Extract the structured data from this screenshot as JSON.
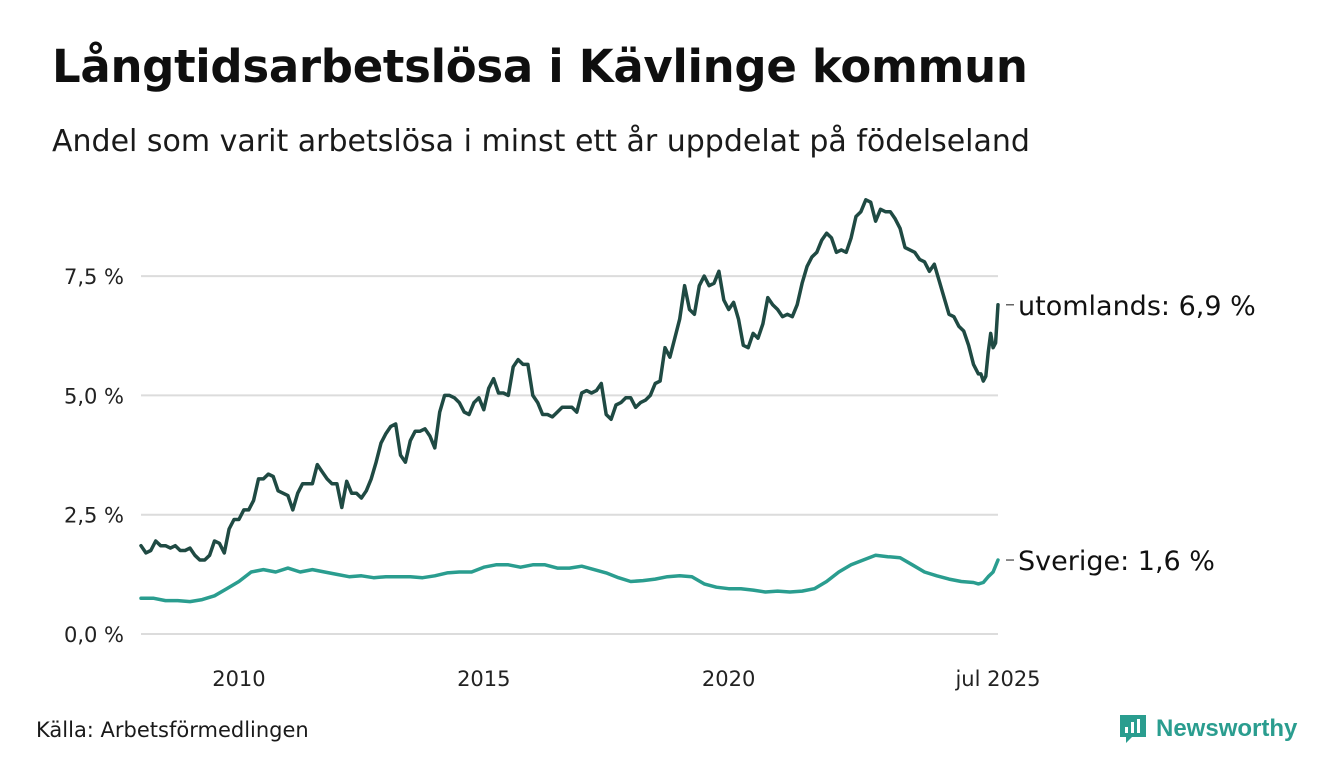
{
  "title": "Långtidsarbetslösa i Kävlinge kommun",
  "subtitle": "Andel som varit arbetslösa i minst ett år uppdelat på födelseland",
  "source": "Källa: Arbetsförmedlingen",
  "brand": {
    "name": "Newsworthy",
    "icon": "newsworthy-logo-icon",
    "color": "#2a9d8f"
  },
  "chart_data": {
    "type": "line",
    "x_unit": "decimal-year",
    "x_range": [
      2008.0,
      2025.5
    ],
    "ylim": [
      0,
      9.2
    ],
    "y_ticks": [
      {
        "value": 0,
        "label": "0,0 %"
      },
      {
        "value": 2.5,
        "label": "2,5 %"
      },
      {
        "value": 5,
        "label": "5,0 %"
      },
      {
        "value": 7.5,
        "label": "7,5 %"
      }
    ],
    "x_ticks": [
      {
        "value": 2010,
        "label": "2010"
      },
      {
        "value": 2015,
        "label": "2015"
      },
      {
        "value": 2020,
        "label": "2020"
      },
      {
        "value": 2025.5,
        "label": "jul 2025"
      }
    ],
    "grid": "horizontal",
    "series": [
      {
        "name": "utomlands",
        "end_label": "utomlands: 6,9 %",
        "color": "#1f4a43",
        "points": [
          [
            2008.0,
            1.85
          ],
          [
            2008.1,
            1.7
          ],
          [
            2008.2,
            1.75
          ],
          [
            2008.3,
            1.95
          ],
          [
            2008.4,
            1.85
          ],
          [
            2008.5,
            1.85
          ],
          [
            2008.6,
            1.8
          ],
          [
            2008.7,
            1.85
          ],
          [
            2008.8,
            1.75
          ],
          [
            2008.9,
            1.75
          ],
          [
            2009.0,
            1.8
          ],
          [
            2009.1,
            1.65
          ],
          [
            2009.2,
            1.55
          ],
          [
            2009.3,
            1.55
          ],
          [
            2009.4,
            1.65
          ],
          [
            2009.5,
            1.95
          ],
          [
            2009.6,
            1.9
          ],
          [
            2009.7,
            1.7
          ],
          [
            2009.8,
            2.2
          ],
          [
            2009.9,
            2.4
          ],
          [
            2010.0,
            2.4
          ],
          [
            2010.1,
            2.6
          ],
          [
            2010.2,
            2.6
          ],
          [
            2010.3,
            2.8
          ],
          [
            2010.4,
            3.25
          ],
          [
            2010.5,
            3.25
          ],
          [
            2010.6,
            3.35
          ],
          [
            2010.7,
            3.3
          ],
          [
            2010.8,
            3.0
          ],
          [
            2010.9,
            2.95
          ],
          [
            2011.0,
            2.9
          ],
          [
            2011.1,
            2.6
          ],
          [
            2011.2,
            2.95
          ],
          [
            2011.3,
            3.15
          ],
          [
            2011.4,
            3.15
          ],
          [
            2011.5,
            3.15
          ],
          [
            2011.6,
            3.55
          ],
          [
            2011.7,
            3.4
          ],
          [
            2011.8,
            3.25
          ],
          [
            2011.9,
            3.15
          ],
          [
            2012.0,
            3.15
          ],
          [
            2012.1,
            2.65
          ],
          [
            2012.2,
            3.2
          ],
          [
            2012.3,
            2.95
          ],
          [
            2012.4,
            2.95
          ],
          [
            2012.5,
            2.85
          ],
          [
            2012.6,
            3.0
          ],
          [
            2012.7,
            3.25
          ],
          [
            2012.8,
            3.6
          ],
          [
            2012.9,
            4.0
          ],
          [
            2013.0,
            4.2
          ],
          [
            2013.1,
            4.35
          ],
          [
            2013.2,
            4.4
          ],
          [
            2013.3,
            3.75
          ],
          [
            2013.4,
            3.6
          ],
          [
            2013.5,
            4.05
          ],
          [
            2013.6,
            4.25
          ],
          [
            2013.7,
            4.25
          ],
          [
            2013.8,
            4.3
          ],
          [
            2013.9,
            4.15
          ],
          [
            2014.0,
            3.9
          ],
          [
            2014.1,
            4.65
          ],
          [
            2014.2,
            5.0
          ],
          [
            2014.3,
            5.0
          ],
          [
            2014.4,
            4.95
          ],
          [
            2014.5,
            4.85
          ],
          [
            2014.6,
            4.65
          ],
          [
            2014.7,
            4.6
          ],
          [
            2014.8,
            4.85
          ],
          [
            2014.9,
            4.95
          ],
          [
            2015.0,
            4.7
          ],
          [
            2015.1,
            5.15
          ],
          [
            2015.2,
            5.35
          ],
          [
            2015.3,
            5.05
          ],
          [
            2015.4,
            5.05
          ],
          [
            2015.5,
            5.0
          ],
          [
            2015.6,
            5.6
          ],
          [
            2015.7,
            5.75
          ],
          [
            2015.8,
            5.65
          ],
          [
            2015.9,
            5.65
          ],
          [
            2016.0,
            5.0
          ],
          [
            2016.1,
            4.85
          ],
          [
            2016.2,
            4.6
          ],
          [
            2016.3,
            4.6
          ],
          [
            2016.4,
            4.55
          ],
          [
            2016.5,
            4.65
          ],
          [
            2016.6,
            4.75
          ],
          [
            2016.7,
            4.75
          ],
          [
            2016.8,
            4.75
          ],
          [
            2016.9,
            4.65
          ],
          [
            2017.0,
            5.05
          ],
          [
            2017.1,
            5.1
          ],
          [
            2017.2,
            5.05
          ],
          [
            2017.3,
            5.1
          ],
          [
            2017.4,
            5.25
          ],
          [
            2017.5,
            4.6
          ],
          [
            2017.6,
            4.5
          ],
          [
            2017.7,
            4.8
          ],
          [
            2017.8,
            4.85
          ],
          [
            2017.9,
            4.95
          ],
          [
            2018.0,
            4.95
          ],
          [
            2018.1,
            4.75
          ],
          [
            2018.2,
            4.85
          ],
          [
            2018.3,
            4.9
          ],
          [
            2018.4,
            5.0
          ],
          [
            2018.5,
            5.25
          ],
          [
            2018.6,
            5.3
          ],
          [
            2018.7,
            6.0
          ],
          [
            2018.8,
            5.8
          ],
          [
            2018.9,
            6.2
          ],
          [
            2019.0,
            6.6
          ],
          [
            2019.1,
            7.3
          ],
          [
            2019.2,
            6.8
          ],
          [
            2019.3,
            6.7
          ],
          [
            2019.4,
            7.3
          ],
          [
            2019.5,
            7.5
          ],
          [
            2019.6,
            7.3
          ],
          [
            2019.7,
            7.35
          ],
          [
            2019.8,
            7.6
          ],
          [
            2019.9,
            7.0
          ],
          [
            2020.0,
            6.8
          ],
          [
            2020.1,
            6.95
          ],
          [
            2020.2,
            6.6
          ],
          [
            2020.3,
            6.05
          ],
          [
            2020.4,
            6.0
          ],
          [
            2020.5,
            6.3
          ],
          [
            2020.6,
            6.2
          ],
          [
            2020.7,
            6.5
          ],
          [
            2020.8,
            7.05
          ],
          [
            2020.9,
            6.9
          ],
          [
            2021.0,
            6.8
          ],
          [
            2021.1,
            6.65
          ],
          [
            2021.2,
            6.7
          ],
          [
            2021.3,
            6.65
          ],
          [
            2021.4,
            6.9
          ],
          [
            2021.5,
            7.35
          ],
          [
            2021.6,
            7.7
          ],
          [
            2021.7,
            7.9
          ],
          [
            2021.8,
            8.0
          ],
          [
            2021.9,
            8.25
          ],
          [
            2022.0,
            8.4
          ],
          [
            2022.1,
            8.3
          ],
          [
            2022.2,
            8.0
          ],
          [
            2022.3,
            8.05
          ],
          [
            2022.4,
            8.0
          ],
          [
            2022.5,
            8.3
          ],
          [
            2022.6,
            8.75
          ],
          [
            2022.7,
            8.85
          ],
          [
            2022.8,
            9.1
          ],
          [
            2022.9,
            9.05
          ],
          [
            2023.0,
            8.65
          ],
          [
            2023.1,
            8.9
          ],
          [
            2023.2,
            8.85
          ],
          [
            2023.3,
            8.85
          ],
          [
            2023.4,
            8.7
          ],
          [
            2023.5,
            8.5
          ],
          [
            2023.6,
            8.1
          ],
          [
            2023.7,
            8.05
          ],
          [
            2023.8,
            8.0
          ],
          [
            2023.9,
            7.85
          ],
          [
            2024.0,
            7.8
          ],
          [
            2024.1,
            7.6
          ],
          [
            2024.2,
            7.75
          ],
          [
            2024.3,
            7.4
          ],
          [
            2024.4,
            7.05
          ],
          [
            2024.5,
            6.7
          ],
          [
            2024.6,
            6.65
          ],
          [
            2024.7,
            6.45
          ],
          [
            2024.8,
            6.35
          ],
          [
            2024.9,
            6.05
          ],
          [
            2025.0,
            5.65
          ],
          [
            2025.1,
            5.45
          ],
          [
            2025.15,
            5.45
          ],
          [
            2025.2,
            5.3
          ],
          [
            2025.25,
            5.4
          ],
          [
            2025.3,
            5.9
          ],
          [
            2025.35,
            6.3
          ],
          [
            2025.4,
            6.0
          ],
          [
            2025.45,
            6.1
          ],
          [
            2025.5,
            6.9
          ]
        ]
      },
      {
        "name": "Sverige",
        "end_label": "Sverige: 1,6 %",
        "color": "#2a9d8f",
        "points": [
          [
            2008.0,
            0.75
          ],
          [
            2008.25,
            0.75
          ],
          [
            2008.5,
            0.7
          ],
          [
            2008.75,
            0.7
          ],
          [
            2009.0,
            0.68
          ],
          [
            2009.25,
            0.72
          ],
          [
            2009.5,
            0.8
          ],
          [
            2009.75,
            0.95
          ],
          [
            2010.0,
            1.1
          ],
          [
            2010.25,
            1.3
          ],
          [
            2010.5,
            1.35
          ],
          [
            2010.75,
            1.3
          ],
          [
            2011.0,
            1.38
          ],
          [
            2011.25,
            1.3
          ],
          [
            2011.5,
            1.35
          ],
          [
            2011.75,
            1.3
          ],
          [
            2012.0,
            1.25
          ],
          [
            2012.25,
            1.2
          ],
          [
            2012.5,
            1.22
          ],
          [
            2012.75,
            1.18
          ],
          [
            2013.0,
            1.2
          ],
          [
            2013.25,
            1.2
          ],
          [
            2013.5,
            1.2
          ],
          [
            2013.75,
            1.18
          ],
          [
            2014.0,
            1.22
          ],
          [
            2014.25,
            1.28
          ],
          [
            2014.5,
            1.3
          ],
          [
            2014.75,
            1.3
          ],
          [
            2015.0,
            1.4
          ],
          [
            2015.25,
            1.45
          ],
          [
            2015.5,
            1.45
          ],
          [
            2015.75,
            1.4
          ],
          [
            2016.0,
            1.45
          ],
          [
            2016.25,
            1.45
          ],
          [
            2016.5,
            1.38
          ],
          [
            2016.75,
            1.38
          ],
          [
            2017.0,
            1.42
          ],
          [
            2017.25,
            1.35
          ],
          [
            2017.5,
            1.28
          ],
          [
            2017.75,
            1.18
          ],
          [
            2018.0,
            1.1
          ],
          [
            2018.25,
            1.12
          ],
          [
            2018.5,
            1.15
          ],
          [
            2018.75,
            1.2
          ],
          [
            2019.0,
            1.22
          ],
          [
            2019.25,
            1.2
          ],
          [
            2019.5,
            1.05
          ],
          [
            2019.75,
            0.98
          ],
          [
            2020.0,
            0.95
          ],
          [
            2020.25,
            0.95
          ],
          [
            2020.5,
            0.92
          ],
          [
            2020.75,
            0.88
          ],
          [
            2021.0,
            0.9
          ],
          [
            2021.25,
            0.88
          ],
          [
            2021.5,
            0.9
          ],
          [
            2021.75,
            0.95
          ],
          [
            2022.0,
            1.1
          ],
          [
            2022.25,
            1.3
          ],
          [
            2022.5,
            1.45
          ],
          [
            2022.75,
            1.55
          ],
          [
            2023.0,
            1.65
          ],
          [
            2023.25,
            1.62
          ],
          [
            2023.5,
            1.6
          ],
          [
            2023.75,
            1.45
          ],
          [
            2024.0,
            1.3
          ],
          [
            2024.25,
            1.22
          ],
          [
            2024.5,
            1.15
          ],
          [
            2024.75,
            1.1
          ],
          [
            2025.0,
            1.08
          ],
          [
            2025.1,
            1.05
          ],
          [
            2025.2,
            1.08
          ],
          [
            2025.3,
            1.2
          ],
          [
            2025.4,
            1.3
          ],
          [
            2025.5,
            1.55
          ]
        ]
      }
    ]
  }
}
